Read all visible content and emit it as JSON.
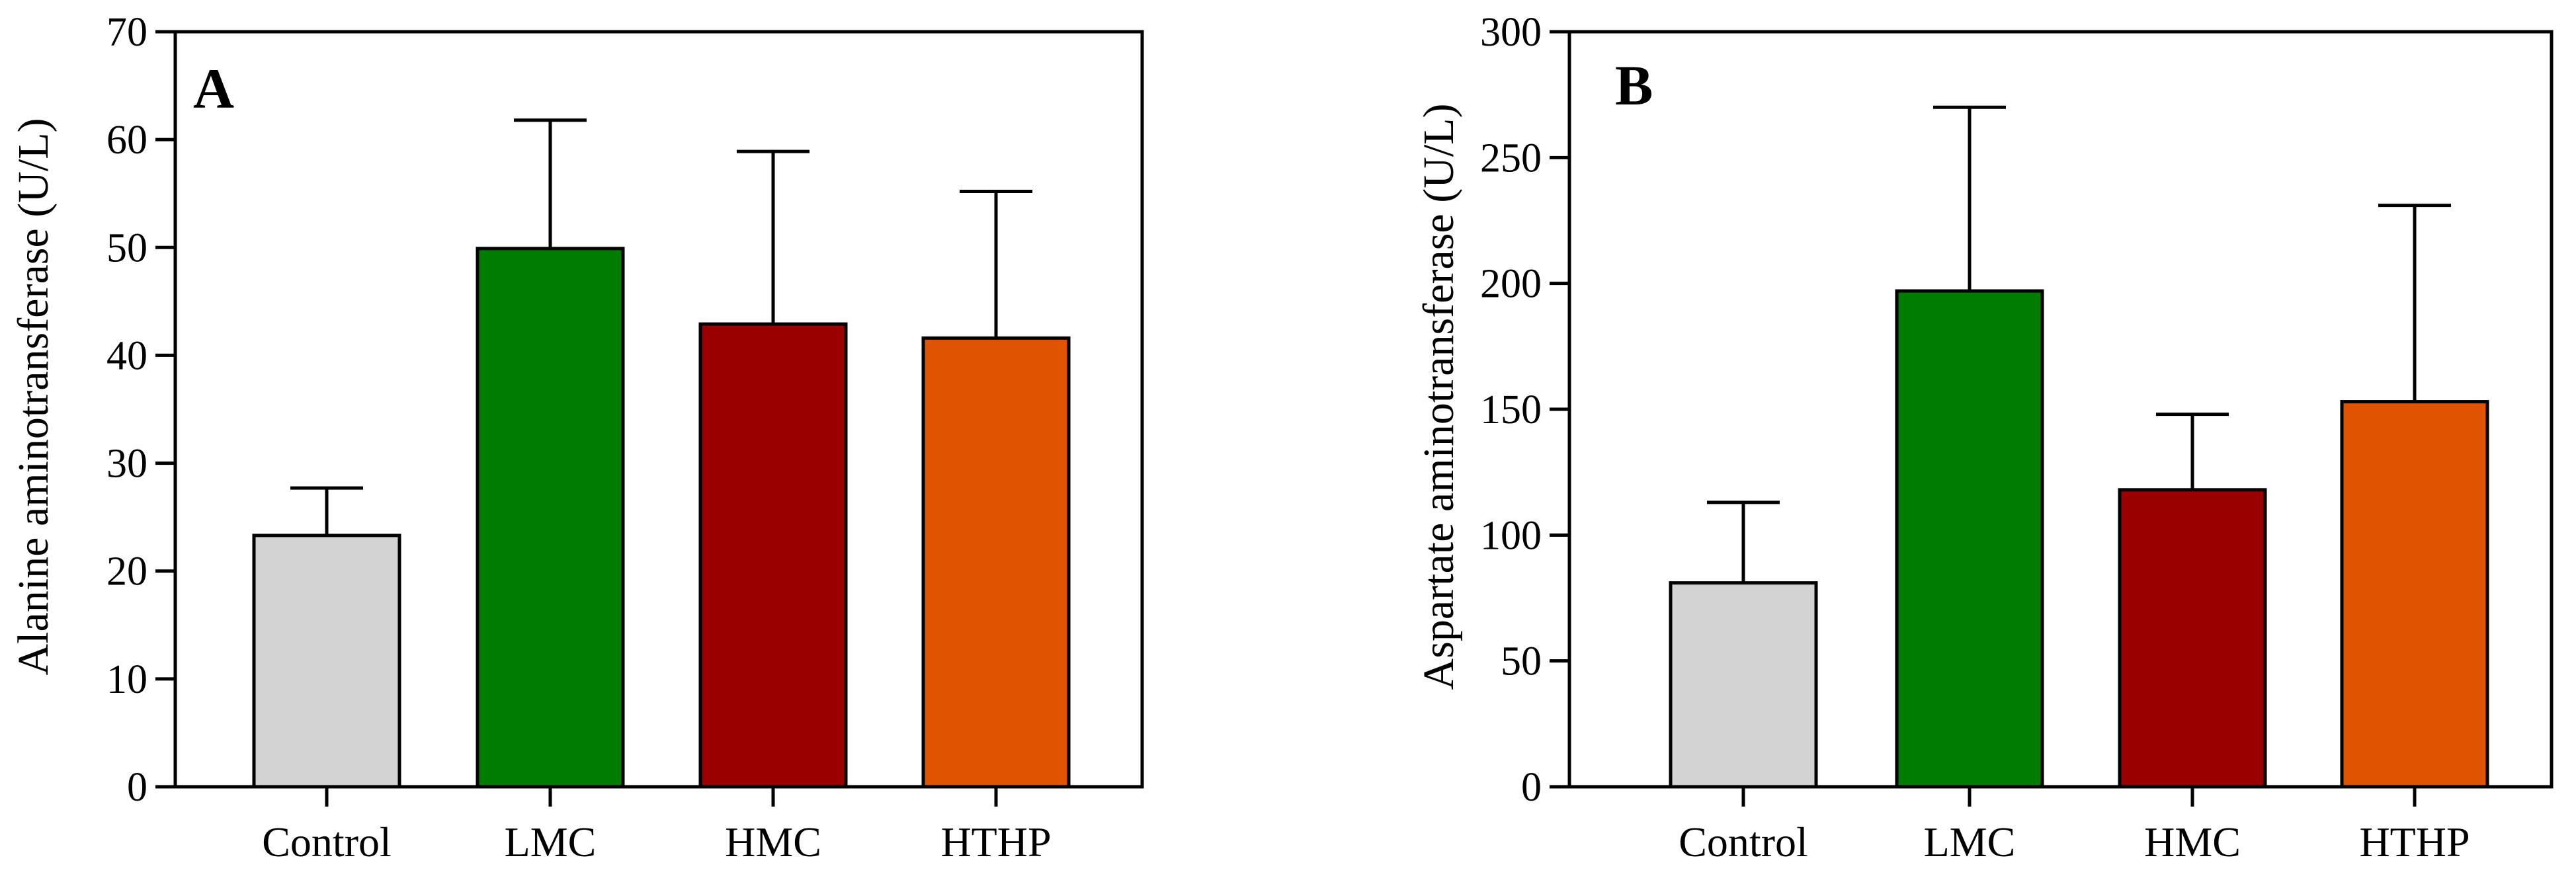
{
  "chart_data": [
    {
      "type": "bar",
      "panel_label": "A",
      "title": "",
      "xlabel": "",
      "ylabel": "Alanine aminotransferase (U/L)",
      "ylim": [
        0,
        70
      ],
      "yticks": [
        0,
        10,
        20,
        30,
        40,
        50,
        60,
        70
      ],
      "categories": [
        "Control",
        "LMC",
        "HMC",
        "HTHP"
      ],
      "values": [
        23.3,
        49.9,
        42.9,
        41.6
      ],
      "error_upper": [
        27.7,
        61.8,
        58.9,
        55.2
      ],
      "colors": [
        "#d3d3d3",
        "#007c00",
        "#9b0000",
        "#e05300"
      ],
      "grid": false,
      "legend": "none"
    },
    {
      "type": "bar",
      "panel_label": "B",
      "title": "",
      "xlabel": "",
      "ylabel": "Aspartate aminotransferase (U/L)",
      "ylim": [
        0,
        300
      ],
      "yticks": [
        0,
        50,
        100,
        150,
        200,
        250,
        300
      ],
      "categories": [
        "Control",
        "LMC",
        "HMC",
        "HTHP"
      ],
      "values": [
        81,
        197,
        118,
        153
      ],
      "error_upper": [
        113,
        270,
        148,
        231
      ],
      "colors": [
        "#d3d3d3",
        "#007c00",
        "#9b0000",
        "#e05300"
      ],
      "grid": false,
      "legend": "none"
    }
  ]
}
